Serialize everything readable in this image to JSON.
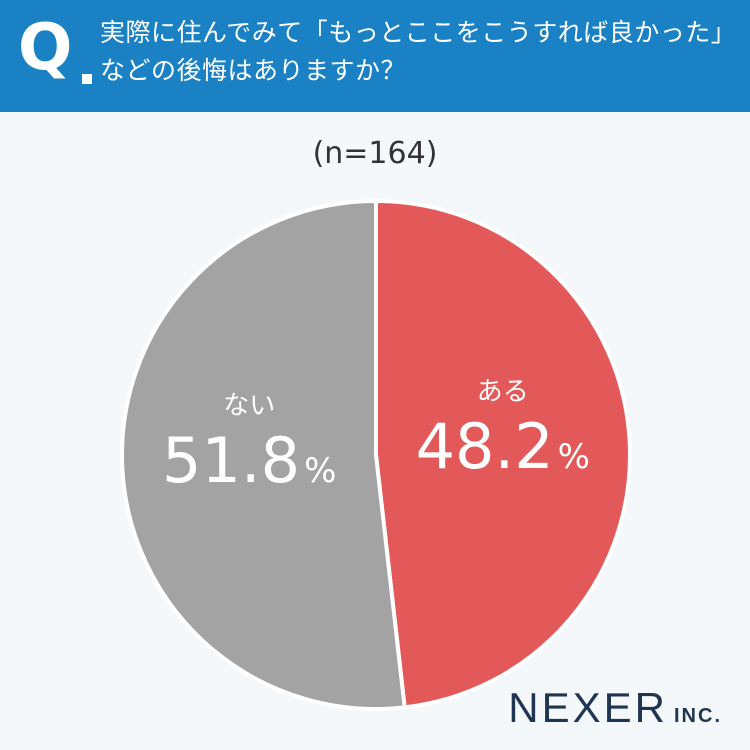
{
  "header": {
    "q_label": "Q",
    "question_line1": "実際に住んでみて「もっとここをこうすれば良かった」",
    "question_line2": "などの後悔はありますか？"
  },
  "sample_text": "(n=164)",
  "colors": {
    "header_bg": "#1a82c4",
    "aru": "#e35858",
    "nai": "#a3a3a3",
    "background": "#f4f8fb",
    "brand": "#1f3552"
  },
  "chart_data": {
    "type": "pie",
    "slices": [
      {
        "label": "ある",
        "value": 48.2,
        "display": "48.2",
        "unit": "%",
        "color": "#e35858"
      },
      {
        "label": "ない",
        "value": 51.8,
        "display": "51.8",
        "unit": "%",
        "color": "#a3a3a3"
      }
    ],
    "start": "12 o'clock",
    "direction": "clockwise"
  },
  "brand": {
    "name": "NEXER",
    "suffix": "INC."
  }
}
